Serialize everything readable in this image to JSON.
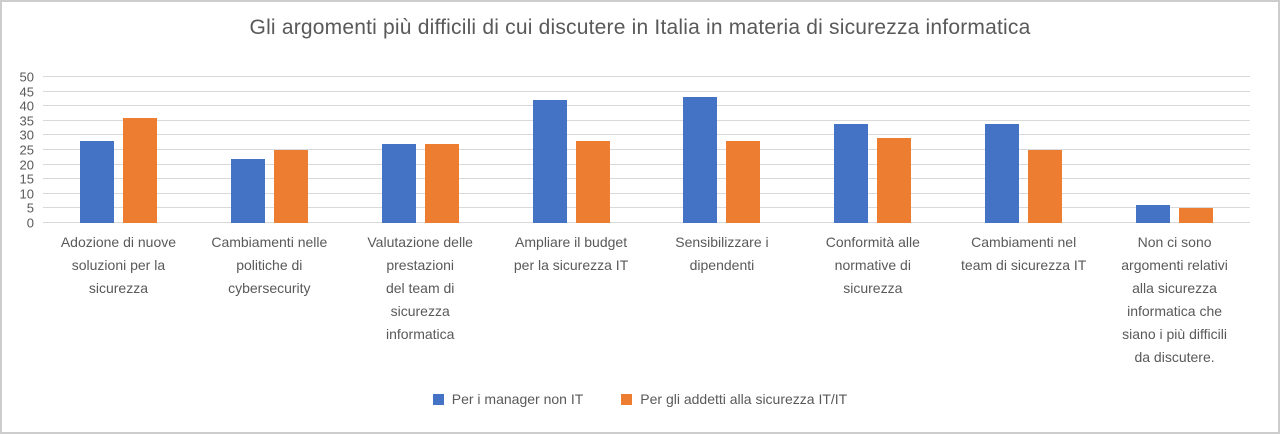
{
  "chart_data": {
    "type": "bar",
    "title": "Gli argomenti più difficili di cui discutere in Italia in materia di sicurezza informatica",
    "categories": [
      "Adozione di nuove\nsoluzioni per la\nsicurezza",
      "Cambiamenti nelle\npolitiche di\ncybersecurity",
      "Valutazione delle\nprestazioni\ndel team di\nsicurezza\ninformatica",
      "Ampliare il budget\nper la sicurezza IT",
      "Sensibilizzare i\ndipendenti",
      "Conformità alle\nnormative di\nsicurezza",
      "Cambiamenti nel\nteam di sicurezza IT",
      "Non ci sono\nargomenti relativi\nalla sicurezza\ninformatica che\nsiano i più difficili\nda discutere."
    ],
    "series": [
      {
        "name": "Per i manager non IT",
        "color": "#4472C4",
        "values": [
          28,
          22,
          27,
          42,
          43,
          34,
          34,
          6
        ]
      },
      {
        "name": "Per gli addetti alla sicurezza IT/IT",
        "color": "#ED7D31",
        "values": [
          36,
          25,
          27,
          28,
          28,
          29,
          25,
          5
        ]
      }
    ],
    "xlabel": "",
    "ylabel": "",
    "ylim": [
      0,
      50
    ],
    "ytick_step": 5,
    "grid": true,
    "gridline_color": "#d9d9d9",
    "text_color": "#595959",
    "legend_position": "bottom"
  }
}
